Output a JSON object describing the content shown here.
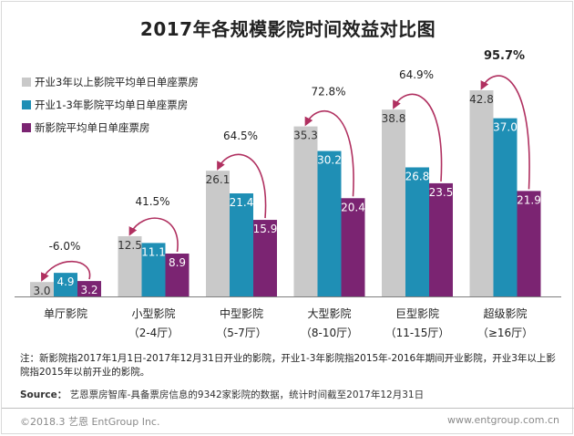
{
  "chart_data": {
    "type": "bar",
    "title": "2017年各规模影院时间效益对比图",
    "categories": [
      {
        "name": "单厅影院",
        "sub": ""
      },
      {
        "name": "小型影院",
        "sub": "（2-4厅）"
      },
      {
        "name": "中型影院",
        "sub": "（5-7厅）"
      },
      {
        "name": "大型影院",
        "sub": "（8-10厅）"
      },
      {
        "name": "巨型影院",
        "sub": "（11-15厅）"
      },
      {
        "name": "超级影院",
        "sub": "（≥16厅）"
      }
    ],
    "series": [
      {
        "name": "开业3年以上影院平均单日单座票房",
        "color": "#c9c9c9",
        "values": [
          3.0,
          12.5,
          26.1,
          35.3,
          38.8,
          42.8
        ]
      },
      {
        "name": "开业1-3年影院平均单日单座票房",
        "color": "#1f8fb5",
        "values": [
          4.9,
          11.1,
          21.4,
          30.2,
          26.8,
          37.0
        ]
      },
      {
        "name": "新影院平均单日单座票房",
        "color": "#7b2472",
        "values": [
          3.2,
          8.9,
          15.9,
          20.4,
          23.5,
          21.9
        ]
      }
    ],
    "growth_labels": [
      "-6.0%",
      "41.5%",
      "64.5%",
      "72.8%",
      "64.9%",
      "95.7%"
    ],
    "highlight_index": 5,
    "ylim": [
      0,
      50
    ],
    "arrow_color": "#b03060",
    "xlabel": "",
    "ylabel": "",
    "legend_position": "top-left"
  },
  "note": "注：新影院指2017年1月1日-2017年12月31日开业的影院，开业1-3年影院指2015年-2016年期间开业影院，开业3年以上影院指2015年以前开业的影院。",
  "source": {
    "label": "Source：",
    "text": "艺恩票房智库-具备票房信息的9342家影院的数据，统计时间截至2017年12月31日"
  },
  "footer": {
    "left": "©2018.3 艺恩 EntGroup Inc.",
    "right": "www.entgroup.com.cn"
  }
}
